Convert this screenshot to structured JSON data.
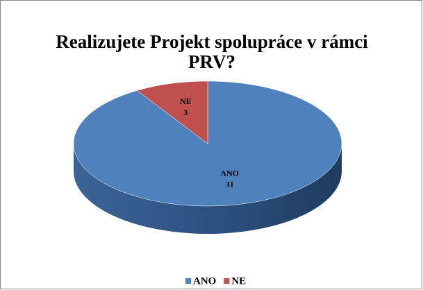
{
  "chart_data": {
    "type": "pie",
    "title": "Realizujete Projekt spolupráce v rámci PRV?",
    "categories": [
      "ANO",
      "NE"
    ],
    "values": [
      31,
      3
    ],
    "colors": [
      "#4f81bd",
      "#c0504d"
    ],
    "legend": "bottom"
  }
}
